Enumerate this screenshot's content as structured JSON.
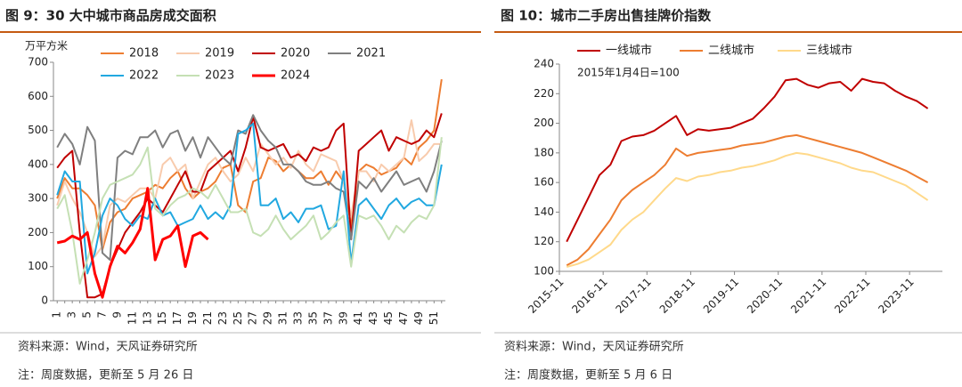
{
  "chart_data": [
    {
      "type": "line",
      "title": "图 9：30 大中城市商品房成交面积",
      "ylabel": "万平方米",
      "source": "资料来源：Wind，天风证券研究所",
      "note": "注：周度数据，更新至 5 月 26 日",
      "categories": [
        1,
        null,
        3,
        null,
        5,
        null,
        7,
        null,
        9,
        null,
        11,
        null,
        13,
        null,
        15,
        null,
        17,
        null,
        19,
        null,
        21,
        null,
        23,
        null,
        25,
        null,
        27,
        null,
        29,
        null,
        31,
        null,
        33,
        null,
        35,
        null,
        37,
        null,
        39,
        null,
        41,
        null,
        43,
        null,
        45,
        null,
        47,
        null,
        49,
        null,
        51,
        null
      ],
      "ylim": [
        0,
        700
      ],
      "yticks": [
        0,
        100,
        200,
        300,
        400,
        500,
        600,
        700
      ],
      "series": [
        {
          "name": "2018",
          "color": "#ED7D31",
          "values": [
            300,
            360,
            330,
            330,
            310,
            280,
            150,
            230,
            260,
            270,
            300,
            310,
            320,
            340,
            330,
            360,
            380,
            330,
            300,
            320,
            330,
            350,
            390,
            400,
            280,
            260,
            350,
            360,
            420,
            410,
            380,
            400,
            380,
            360,
            360,
            380,
            340,
            380,
            350,
            220,
            380,
            400,
            390,
            370,
            380,
            390,
            420,
            400,
            450,
            470,
            500,
            650
          ]
        },
        {
          "name": "2019",
          "color": "#F8CBAD",
          "values": [
            280,
            350,
            300,
            260,
            200,
            130,
            160,
            280,
            300,
            290,
            310,
            330,
            330,
            300,
            400,
            420,
            380,
            400,
            300,
            350,
            400,
            420,
            380,
            350,
            370,
            420,
            380,
            460,
            430,
            400,
            420,
            390,
            440,
            400,
            380,
            430,
            420,
            410,
            350,
            250,
            380,
            380,
            350,
            400,
            380,
            400,
            420,
            530,
            410,
            430,
            460,
            460
          ]
        },
        {
          "name": "2020",
          "color": "#C00000",
          "values": [
            390,
            420,
            440,
            200,
            10,
            10,
            20,
            100,
            150,
            200,
            230,
            260,
            300,
            280,
            260,
            300,
            340,
            380,
            320,
            320,
            380,
            400,
            420,
            440,
            380,
            450,
            540,
            450,
            440,
            450,
            460,
            420,
            430,
            410,
            450,
            440,
            450,
            500,
            520,
            180,
            440,
            460,
            480,
            500,
            440,
            480,
            470,
            460,
            470,
            500,
            480,
            550
          ]
        },
        {
          "name": "2021",
          "color": "#7F7F7F",
          "values": [
            450,
            490,
            460,
            400,
            510,
            470,
            140,
            120,
            420,
            440,
            430,
            480,
            480,
            500,
            450,
            490,
            500,
            440,
            480,
            420,
            480,
            450,
            420,
            400,
            500,
            490,
            545,
            500,
            470,
            450,
            400,
            400,
            380,
            350,
            340,
            340,
            350,
            330,
            320,
            180,
            350,
            330,
            360,
            320,
            350,
            380,
            340,
            350,
            360,
            320,
            380,
            470
          ]
        },
        {
          "name": "2022",
          "color": "#21A8E0",
          "values": [
            310,
            380,
            350,
            350,
            80,
            140,
            250,
            300,
            280,
            240,
            220,
            250,
            240,
            300,
            250,
            260,
            220,
            230,
            240,
            280,
            240,
            260,
            240,
            280,
            490,
            500,
            520,
            280,
            280,
            300,
            240,
            260,
            230,
            270,
            270,
            280,
            210,
            220,
            380,
            110,
            280,
            300,
            270,
            240,
            280,
            300,
            270,
            290,
            300,
            280,
            280,
            400
          ]
        },
        {
          "name": "2023",
          "color": "#C5E0B4",
          "values": [
            270,
            310,
            200,
            50,
            120,
            200,
            300,
            340,
            350,
            360,
            370,
            400,
            450,
            270,
            250,
            280,
            300,
            310,
            330,
            320,
            300,
            340,
            300,
            260,
            260,
            270,
            200,
            190,
            210,
            250,
            210,
            180,
            200,
            220,
            250,
            180,
            200,
            230,
            250,
            100,
            250,
            240,
            250,
            220,
            180,
            220,
            200,
            230,
            250,
            240,
            280,
            480
          ]
        },
        {
          "name": "2024",
          "color": "#FF0000",
          "values": [
            170,
            175,
            190,
            180,
            200,
            80,
            10,
            100,
            160,
            140,
            170,
            210,
            330,
            120,
            180,
            190,
            220,
            100,
            190,
            200,
            180,
            null,
            null,
            null,
            null,
            null,
            null,
            null,
            null,
            null,
            null,
            null,
            null,
            null,
            null,
            null,
            null,
            null,
            null,
            null,
            null,
            null,
            null,
            null,
            null,
            null,
            null,
            null,
            null,
            null,
            null,
            null
          ]
        }
      ]
    },
    {
      "type": "line",
      "title": "图 10：城市二手房出售挂牌价指数",
      "annotation": "2015年1月4日=100",
      "source": "资料来源：Wind，天风证券研究所",
      "note": "注：周度数据，更新至 5 月 6 日",
      "x": [
        "2016-01",
        "2016-04",
        "2016-07",
        "2016-10",
        "2017-01",
        "2017-04",
        "2017-07",
        "2017-10",
        "2018-01",
        "2018-04",
        "2018-07",
        "2018-10",
        "2019-01",
        "2019-04",
        "2019-07",
        "2019-10",
        "2020-01",
        "2020-04",
        "2020-07",
        "2020-10",
        "2021-01",
        "2021-04",
        "2021-07",
        "2021-10",
        "2022-01",
        "2022-04",
        "2022-07",
        "2022-10",
        "2023-01",
        "2023-04",
        "2023-07",
        "2023-10",
        "2024-01",
        "2024-04"
      ],
      "xlim": [
        "2015-11",
        "2024-08"
      ],
      "xticks": [
        "2015-11",
        "2016-11",
        "2017-11",
        "2018-11",
        "2019-11",
        "2020-11",
        "2021-11",
        "2022-11",
        "2023-11"
      ],
      "ylim": [
        100,
        240
      ],
      "yticks": [
        100,
        120,
        140,
        160,
        180,
        200,
        220,
        240
      ],
      "series": [
        {
          "name": "一线城市",
          "color": "#C00000",
          "values": [
            120,
            135,
            150,
            165,
            172,
            188,
            191,
            192,
            195,
            200,
            205,
            192,
            196,
            195,
            196,
            197,
            200,
            203,
            210,
            218,
            229,
            230,
            226,
            224,
            227,
            228,
            222,
            230,
            228,
            227,
            222,
            218,
            215,
            210
          ]
        },
        {
          "name": "二线城市",
          "color": "#ED7D31",
          "values": [
            104,
            108,
            115,
            125,
            135,
            148,
            155,
            160,
            165,
            172,
            183,
            178,
            180,
            181,
            182,
            183,
            185,
            186,
            187,
            189,
            191,
            192,
            190,
            188,
            186,
            184,
            182,
            180,
            177,
            174,
            171,
            168,
            164,
            160
          ]
        },
        {
          "name": "三线城市",
          "color": "#FFD98A",
          "values": [
            103,
            105,
            108,
            113,
            118,
            128,
            135,
            140,
            148,
            156,
            163,
            161,
            164,
            165,
            167,
            168,
            170,
            171,
            173,
            175,
            178,
            180,
            179,
            177,
            175,
            173,
            170,
            168,
            167,
            164,
            161,
            158,
            153,
            148
          ]
        }
      ]
    }
  ]
}
